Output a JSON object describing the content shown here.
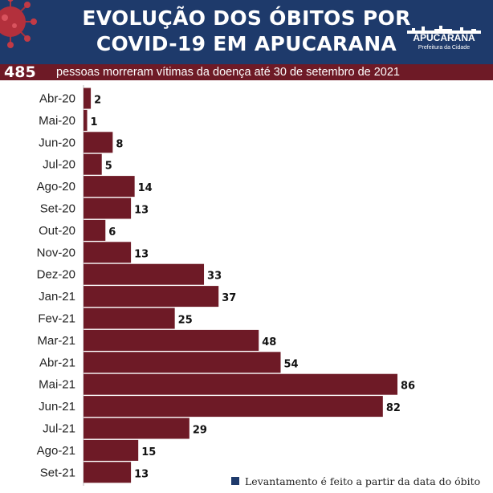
{
  "header": {
    "title_line1": "EVOLUÇÃO DOS ÓBITOS POR",
    "title_line2": "COVID-19 EM APUCARANA",
    "logo_name": "APUCARANA",
    "logo_subtitle": "Prefeitura da Cidade",
    "background_color": "#1e3a6b"
  },
  "summary": {
    "total": "485",
    "text": "pessoas morreram vítimas da doença até 30 de setembro de 2021",
    "background_color": "#6e1a26"
  },
  "footnote": {
    "text": "Levantamento é feito a partir da data do óbito"
  },
  "chart_data": {
    "type": "bar",
    "orientation": "horizontal",
    "title": "EVOLUÇÃO DOS ÓBITOS POR COVID-19 EM APUCARANA",
    "categories": [
      "Abr-20",
      "Mai-20",
      "Jun-20",
      "Jul-20",
      "Ago-20",
      "Set-20",
      "Out-20",
      "Nov-20",
      "Dez-20",
      "Jan-21",
      "Fev-21",
      "Mar-21",
      "Abr-21",
      "Mai-21",
      "Jun-21",
      "Jul-21",
      "Ago-21",
      "Set-21"
    ],
    "values": [
      2,
      1,
      8,
      5,
      14,
      13,
      6,
      13,
      33,
      37,
      25,
      48,
      54,
      86,
      82,
      29,
      15,
      13
    ],
    "xlim": [
      0,
      86
    ],
    "bar_color": "#6e1a26",
    "grid": false,
    "data_labels": true
  }
}
